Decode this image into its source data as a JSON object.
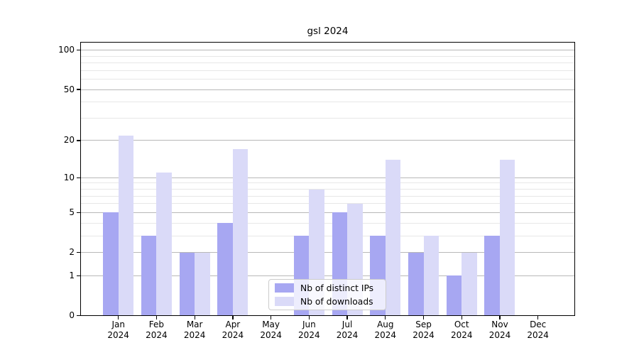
{
  "title": "gsl 2024",
  "colors": {
    "bar_distinct_ips": "#a7a7f2",
    "bar_downloads": "#dadaf8",
    "grid_major": "#b8b8b8",
    "grid_minor": "#e7e7e7",
    "spine": "#000000",
    "background": "#ffffff"
  },
  "chart_data": {
    "type": "bar",
    "title": "gsl 2024",
    "categories": [
      "Jan",
      "Feb",
      "Mar",
      "Apr",
      "May",
      "Jun",
      "Jul",
      "Aug",
      "Sep",
      "Oct",
      "Nov",
      "Dec"
    ],
    "category_year": "2024",
    "series": [
      {
        "name": "Nb of distinct IPs",
        "key": "distinct-ips",
        "color": "#a7a7f2",
        "values": [
          5,
          3,
          2,
          4,
          0,
          3,
          5,
          3,
          2,
          1,
          3,
          0
        ]
      },
      {
        "name": "Nb of downloads",
        "key": "downloads",
        "color": "#dadaf8",
        "values": [
          22,
          11,
          2,
          17,
          0,
          8,
          6,
          14,
          3,
          2,
          14,
          0
        ]
      }
    ],
    "xlabel": "",
    "ylabel": "",
    "y_scale": "log1p",
    "y_ticks": [
      0,
      1,
      2,
      5,
      10,
      20,
      50,
      100
    ],
    "y_minor_ticks": [
      3,
      4,
      6,
      7,
      8,
      9,
      30,
      40,
      60,
      70,
      80,
      90
    ],
    "ylim": [
      0,
      114
    ],
    "grid": true,
    "legend_position": "lower center"
  }
}
